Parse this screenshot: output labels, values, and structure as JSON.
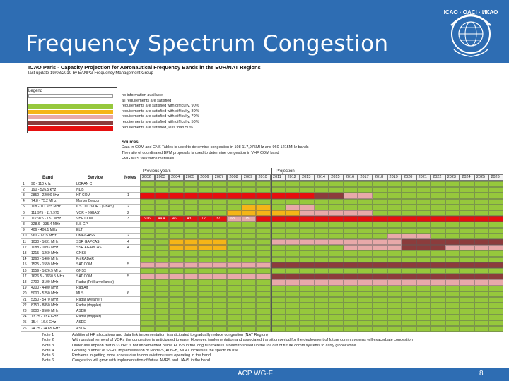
{
  "slide": {
    "title": "Frequency Spectrum Congestion",
    "footer": "ACP WG-F",
    "page_number": "8",
    "logo_text": "ICAO · OACI · ИКАО"
  },
  "sheet": {
    "title": "ICAO Paris - Capacity Projection for Aeronautical Frequency Bands in the EUR/NAT Regions",
    "last_update": "last update 19/08/2010 by EANPG Frequency Management Group",
    "legend_title": "Legend",
    "legend": [
      {
        "label": "no information available",
        "color": "#ffffff"
      },
      {
        "label": "all requirements are satisfied",
        "color": "#ffffff"
      },
      {
        "label": "requirements are satisfied with difficulty, 90%",
        "color": "#96c83c"
      },
      {
        "label": "requirements are satisfied with difficulty, 80%",
        "color": "#f5b517"
      },
      {
        "label": "requirements are satisfied with difficulty, 70%",
        "color": "#e8a9a9"
      },
      {
        "label": "requirements are satisfied with difficulty, 50%",
        "color": "#8c3c3c"
      },
      {
        "label": "requirements are satisfied, less than 50%",
        "color": "#e60f0f"
      }
    ],
    "sources_title": "Sources",
    "sources": [
      "Data in COM and CNS Tables is used to determine congestion in 108-117,975MHz and 960-1215MHz bands",
      "The ratio of coordinated BPM proposals is used to determine congestion in VHF COM band",
      "FMG MLS task force materials"
    ],
    "previous_years_label": "Previous years",
    "projection_label": "Projection",
    "col_band": "Band",
    "col_service": "Service",
    "col_notes": "Notes",
    "years": [
      "2002",
      "2003",
      "2004",
      "2005",
      "2006",
      "2007",
      "2008",
      "2009",
      "2010",
      "2011",
      "2012",
      "2013",
      "2014",
      "2015",
      "2016",
      "2017",
      "2018",
      "2019",
      "2020",
      "2021",
      "2022",
      "2023",
      "2024",
      "2025",
      "2026"
    ],
    "rows": [
      {
        "n": "1",
        "band": "90 - 110 kHz",
        "service": "LORAN C",
        "note": ""
      },
      {
        "n": "2",
        "band": "190 - 526.5 kHz",
        "service": "NDB",
        "note": ""
      },
      {
        "n": "3",
        "band": "2850 - 22000 kHz",
        "service": "HF COM",
        "note": "1"
      },
      {
        "n": "4",
        "band": "74.8 - 75.2 MHz",
        "service": "Marker Beacon",
        "note": ""
      },
      {
        "n": "5",
        "band": "108 - 111.975 MHz",
        "service": "ILS LOC/VOR - (GBAS)",
        "note": "2"
      },
      {
        "n": "6",
        "band": "111.975 - 117.975",
        "service": "VOR + (GBAS)",
        "note": "2"
      },
      {
        "n": "7",
        "band": "117.975 - 137 MHz",
        "service": "VHF COM",
        "note": "3"
      },
      {
        "n": "8",
        "band": "328.6 - 335.4 MHz",
        "service": "ILS GP",
        "note": ""
      },
      {
        "n": "9",
        "band": "406 - 406.1 MHz",
        "service": "ELT",
        "note": ""
      },
      {
        "n": "10",
        "band": "960 - 1215 MHz",
        "service": "DME/GASS",
        "note": "2"
      },
      {
        "n": "11",
        "band": "1030 - 1031 MHz",
        "service": "SSR GAPCAS",
        "note": "4"
      },
      {
        "n": "12",
        "band": "1088 - 1093 MHz",
        "service": "SSR AGAPCAS",
        "note": "4"
      },
      {
        "n": "13",
        "band": "1215 - 1260 MHz",
        "service": "GNSS",
        "note": ""
      },
      {
        "n": "14",
        "band": "1260 - 1400 MHz",
        "service": "Pri RADAR",
        "note": ""
      },
      {
        "n": "15",
        "band": "1525 - 1559 MHz",
        "service": "SAT COM",
        "note": "5"
      },
      {
        "n": "16",
        "band": "1559 - 1626.5 MHz",
        "service": "GNSS",
        "note": ""
      },
      {
        "n": "17",
        "band": "1626.5 - 1660.5 MHz",
        "service": "SAT COM",
        "note": "5"
      },
      {
        "n": "18",
        "band": "2700 - 3100 MHz",
        "service": "Radar (Pri Surveillance)",
        "note": ""
      },
      {
        "n": "19",
        "band": "4200 - 4400 MHz",
        "service": "Rad Alt",
        "note": ""
      },
      {
        "n": "20",
        "band": "5000 - 5250 MHz",
        "service": "MLS",
        "note": "6"
      },
      {
        "n": "21",
        "band": "5350 - 5470 MHz",
        "service": "Radar (weather)",
        "note": ""
      },
      {
        "n": "22",
        "band": "8750 - 8850 MHz",
        "service": "Radar (doppler)",
        "note": ""
      },
      {
        "n": "23",
        "band": "9000 - 9500 MHz",
        "service": "ASDE",
        "note": ""
      },
      {
        "n": "24",
        "band": "13.25 - 13.4 GHz",
        "service": "Radar (doppler)",
        "note": ""
      },
      {
        "n": "25",
        "band": "15.4 - 16.6 GHz",
        "service": "ASDE",
        "note": ""
      },
      {
        "n": "26",
        "band": "24.25 - 24.65 GHz",
        "service": "ASDE",
        "note": ""
      }
    ],
    "vhf_values": [
      "50.6",
      "44.4",
      "46",
      "43",
      "12",
      "37",
      "68",
      "75"
    ],
    "notes": [
      {
        "label": "Note 1",
        "text": "Additional HF allocations and data link implementation is anticipated to gradually reduce congestion (NAT Region)"
      },
      {
        "label": "Note 2",
        "text": "With gradual removal of VORs the congestion is anticipated to ease. However, implementation and associated transition period for the deployment of future comm systems will exacerbate congestion"
      },
      {
        "label": "Note 3",
        "text": "Under assumption that 8.33 kHz is not implemented below FL195 in the long run there is a need to speed up the roll out of future comm systems to carry global voice"
      },
      {
        "label": "Note 4",
        "text": "Growing number of SSRs, implementation of Mode-S, ADS-B, MLAT increases the spectrum use"
      },
      {
        "label": "Note 5",
        "text": "Problems in getting more access due to non aviation users operating in the band"
      },
      {
        "label": "Note 6",
        "text": "Congestion will grow with implementation of future AMRS and UAVS in the band"
      }
    ]
  }
}
